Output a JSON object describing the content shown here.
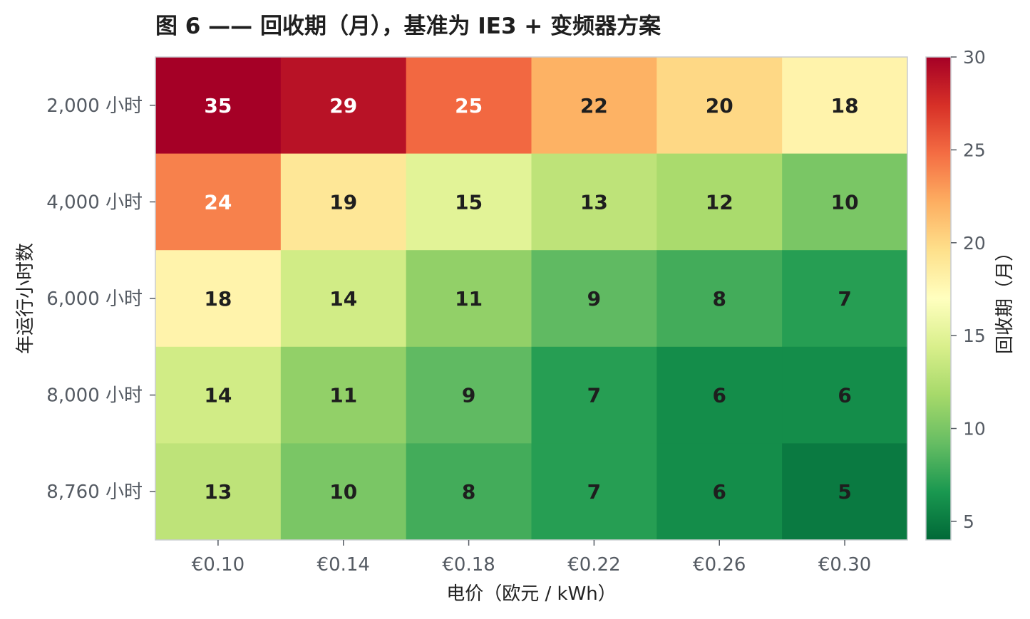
{
  "chart_data": {
    "type": "heatmap",
    "title": "图 6 —— 回收期（月），基准为 IE3 + 变频器方案",
    "xlabel": "电价（欧元 / kWh）",
    "ylabel": "年运行小时数",
    "x_categories": [
      "€0.10",
      "€0.14",
      "€0.18",
      "€0.22",
      "€0.26",
      "€0.30"
    ],
    "y_categories": [
      "2,000 小时",
      "4,000 小时",
      "6,000 小时",
      "8,000 小时",
      "8,760 小时"
    ],
    "values": [
      [
        35,
        29,
        25,
        22,
        20,
        18
      ],
      [
        24,
        19,
        15,
        13,
        12,
        10
      ],
      [
        18,
        14,
        11,
        9,
        8,
        7
      ],
      [
        14,
        11,
        9,
        7,
        6,
        6
      ],
      [
        13,
        10,
        8,
        7,
        6,
        5
      ]
    ],
    "colorbar": {
      "label": "回收期（月）",
      "range": [
        4,
        30
      ],
      "ticks": [
        5,
        10,
        15,
        20,
        25,
        30
      ],
      "colormap": "RdYlGn_r"
    }
  }
}
